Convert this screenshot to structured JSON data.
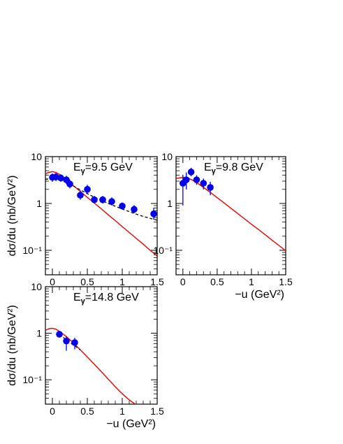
{
  "chart_data": [
    {
      "type": "scatter",
      "title": "E",
      "title_sub": "γ",
      "title_tail": "=9.5 GeV",
      "ylabel": "dσ/du  (nb/GeV²)",
      "xlabel": "",
      "xlim": [
        -0.1,
        1.5
      ],
      "ylim": [
        0.03,
        10
      ],
      "yscale": "log",
      "xticks": [
        "0",
        "0.5",
        "1",
        "1.5"
      ],
      "yticks": [
        "10",
        "1",
        "10⁻¹"
      ],
      "series": [
        {
          "kind": "points",
          "color": "#0000ee",
          "x": [
            0.0,
            0.05,
            0.12,
            0.2,
            0.25,
            0.4,
            0.5,
            0.6,
            0.72,
            0.85,
            1.0,
            1.17,
            1.45
          ],
          "y": [
            3.6,
            3.7,
            3.5,
            3.2,
            2.6,
            1.5,
            2.0,
            1.2,
            1.2,
            1.1,
            0.88,
            0.75,
            0.6
          ],
          "err_lo": [
            2.9,
            3.0,
            2.9,
            2.6,
            2.1,
            1.2,
            1.6,
            1.0,
            1.0,
            0.9,
            0.75,
            0.62,
            0.45
          ],
          "err_hi": [
            4.4,
            4.5,
            4.2,
            3.9,
            3.2,
            1.9,
            2.5,
            1.45,
            1.45,
            1.35,
            1.05,
            0.92,
            0.8
          ]
        },
        {
          "kind": "line",
          "color": "#ee0000",
          "x": [
            -0.1,
            -0.05,
            0.0,
            0.05,
            0.1,
            0.15,
            0.2,
            0.3,
            0.4,
            0.5,
            0.6,
            0.7,
            0.8,
            0.9,
            1.0,
            1.1,
            1.2,
            1.3,
            1.4,
            1.5
          ],
          "y": [
            4.3,
            4.6,
            4.8,
            4.6,
            4.2,
            3.7,
            3.2,
            2.4,
            1.8,
            1.35,
            1.02,
            0.77,
            0.57,
            0.43,
            0.32,
            0.24,
            0.18,
            0.135,
            0.1,
            0.075
          ]
        },
        {
          "kind": "dashed",
          "color": "#000000",
          "x": [
            -0.1,
            0.0,
            0.1,
            0.2,
            0.3,
            0.4,
            0.5,
            0.6,
            0.7,
            0.8,
            0.9,
            1.0,
            1.1,
            1.2,
            1.3,
            1.4,
            1.5
          ],
          "y": [
            3.3,
            3.4,
            3.2,
            2.8,
            2.35,
            1.95,
            1.62,
            1.36,
            1.16,
            1.0,
            0.87,
            0.76,
            0.67,
            0.59,
            0.53,
            0.48,
            0.44
          ]
        }
      ]
    },
    {
      "type": "scatter",
      "title": "E",
      "title_sub": "γ",
      "title_tail": "=9.8 GeV",
      "ylabel": "",
      "xlabel": "−u (GeV²)",
      "xlim": [
        -0.1,
        1.5
      ],
      "ylim": [
        0.03,
        10
      ],
      "yscale": "log",
      "xticks": [
        "0",
        "0.5",
        "1",
        "1.5"
      ],
      "yticks": [
        "10",
        "1",
        "10⁻¹"
      ],
      "series": [
        {
          "kind": "points",
          "color": "#0000ee",
          "x": [
            0.0,
            0.05,
            0.12,
            0.2,
            0.3,
            0.4
          ],
          "y": [
            2.7,
            3.2,
            4.7,
            3.2,
            2.7,
            2.2
          ],
          "err_lo": [
            0.9,
            2.0,
            3.8,
            2.5,
            2.0,
            1.5
          ],
          "err_hi": [
            4.1,
            4.6,
            5.8,
            4.0,
            3.4,
            2.9
          ]
        },
        {
          "kind": "line",
          "color": "#ee0000",
          "x": [
            -0.1,
            -0.05,
            0.0,
            0.05,
            0.1,
            0.15,
            0.2,
            0.3,
            0.4,
            0.5,
            0.6,
            0.7,
            0.8,
            0.9,
            1.0,
            1.1,
            1.2,
            1.3,
            1.4,
            1.5
          ],
          "y": [
            3.4,
            3.5,
            3.6,
            3.55,
            3.35,
            3.1,
            2.8,
            2.2,
            1.72,
            1.33,
            1.03,
            0.79,
            0.61,
            0.47,
            0.36,
            0.28,
            0.215,
            0.165,
            0.127,
            0.098
          ]
        }
      ]
    },
    {
      "type": "scatter",
      "title": "E",
      "title_sub": "γ",
      "title_tail": "=14.8 GeV",
      "ylabel": "dσ/du  (nb/GeV²)",
      "xlabel": "−u (GeV²)",
      "xlim": [
        -0.1,
        1.5
      ],
      "ylim": [
        0.03,
        10
      ],
      "yscale": "log",
      "xticks": [
        "0",
        "0.5",
        "1",
        "1.5"
      ],
      "yticks": [
        "10",
        "1",
        "10⁻¹"
      ],
      "series": [
        {
          "kind": "points",
          "color": "#0000ee",
          "x": [
            0.1,
            0.2,
            0.32
          ],
          "y": [
            0.95,
            0.68,
            0.63
          ],
          "err_lo": [
            0.82,
            0.42,
            0.45
          ],
          "err_hi": [
            1.08,
            0.86,
            0.8
          ]
        },
        {
          "kind": "line",
          "color": "#ee0000",
          "x": [
            -0.1,
            -0.05,
            0.0,
            0.05,
            0.1,
            0.2,
            0.3,
            0.4,
            0.5,
            0.6,
            0.7,
            0.8,
            0.9,
            1.0,
            1.1,
            1.2,
            1.25
          ],
          "y": [
            1.15,
            1.25,
            1.28,
            1.22,
            1.1,
            0.85,
            0.62,
            0.44,
            0.31,
            0.215,
            0.15,
            0.103,
            0.071,
            0.05,
            0.037,
            0.029,
            0.028
          ]
        },
        {
          "kind": "dashed",
          "color": "#000000",
          "x": [
            0.1,
            0.2,
            0.3,
            0.4
          ],
          "y": [
            0.95,
            0.72,
            0.56,
            0.44
          ]
        }
      ]
    }
  ]
}
